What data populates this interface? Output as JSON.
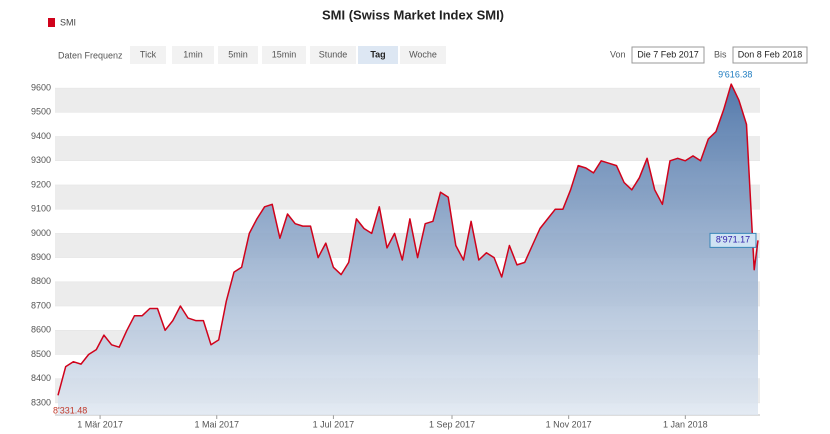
{
  "chart_data": {
    "type": "area",
    "title": "SMI (Swiss Market Index SMI)",
    "x": [
      "2017-02-07",
      "2017-02-11",
      "2017-02-15",
      "2017-02-19",
      "2017-02-23",
      "2017-02-27",
      "2017-03-03",
      "2017-03-07",
      "2017-03-11",
      "2017-03-15",
      "2017-03-19",
      "2017-03-23",
      "2017-03-27",
      "2017-03-31",
      "2017-04-04",
      "2017-04-08",
      "2017-04-12",
      "2017-04-16",
      "2017-04-20",
      "2017-04-24",
      "2017-04-28",
      "2017-05-02",
      "2017-05-06",
      "2017-05-10",
      "2017-05-14",
      "2017-05-18",
      "2017-05-22",
      "2017-05-26",
      "2017-05-30",
      "2017-06-03",
      "2017-06-07",
      "2017-06-11",
      "2017-06-15",
      "2017-06-19",
      "2017-06-23",
      "2017-06-27",
      "2017-07-01",
      "2017-07-05",
      "2017-07-09",
      "2017-07-13",
      "2017-07-17",
      "2017-07-21",
      "2017-07-25",
      "2017-07-29",
      "2017-08-02",
      "2017-08-06",
      "2017-08-10",
      "2017-08-14",
      "2017-08-18",
      "2017-08-22",
      "2017-08-26",
      "2017-08-30",
      "2017-09-03",
      "2017-09-07",
      "2017-09-11",
      "2017-09-15",
      "2017-09-19",
      "2017-09-23",
      "2017-09-27",
      "2017-10-01",
      "2017-10-05",
      "2017-10-09",
      "2017-10-13",
      "2017-10-17",
      "2017-10-21",
      "2017-10-25",
      "2017-10-29",
      "2017-11-02",
      "2017-11-06",
      "2017-11-10",
      "2017-11-14",
      "2017-11-18",
      "2017-11-22",
      "2017-11-26",
      "2017-11-30",
      "2017-12-04",
      "2017-12-08",
      "2017-12-12",
      "2017-12-16",
      "2017-12-20",
      "2017-12-24",
      "2017-12-28",
      "2018-01-01",
      "2018-01-05",
      "2018-01-09",
      "2018-01-13",
      "2018-01-17",
      "2018-01-21",
      "2018-01-25",
      "2018-01-29",
      "2018-02-02",
      "2018-02-06",
      "2018-02-08"
    ],
    "series": [
      {
        "name": "SMI",
        "color": "#d0021b",
        "values": [
          8331.48,
          8450,
          8470,
          8460,
          8500,
          8520,
          8580,
          8540,
          8530,
          8600,
          8660,
          8660,
          8690,
          8690,
          8600,
          8640,
          8700,
          8650,
          8640,
          8640,
          8540,
          8560,
          8720,
          8840,
          8860,
          9000,
          9060,
          9110,
          9120,
          8980,
          9080,
          9040,
          9030,
          9030,
          8900,
          8960,
          8860,
          8830,
          8880,
          9060,
          9020,
          9000,
          9110,
          8940,
          9000,
          8890,
          9060,
          8900,
          9040,
          9050,
          9170,
          9150,
          8950,
          8890,
          9050,
          8890,
          8920,
          8900,
          8820,
          8950,
          8870,
          8880,
          8950,
          9020,
          9060,
          9100,
          9100,
          9180,
          9280,
          9270,
          9250,
          9300,
          9290,
          9280,
          9210,
          9180,
          9230,
          9310,
          9180,
          9120,
          9300,
          9310,
          9300,
          9320,
          9300,
          9390,
          9420,
          9510,
          9616.38,
          9550,
          9450,
          8850,
          8971.17
        ],
        "value_labels": [
          "8'331.48",
          null,
          null,
          null,
          null,
          null,
          null,
          null,
          null,
          null,
          null,
          null,
          null,
          null,
          null,
          null,
          null,
          null,
          null,
          null,
          null,
          null,
          null,
          null,
          null,
          null,
          null,
          null,
          null,
          null,
          null,
          null,
          null,
          null,
          null,
          null,
          null,
          null,
          null,
          null,
          null,
          null,
          null,
          null,
          null,
          null,
          null,
          null,
          null,
          null,
          null,
          null,
          null,
          null,
          null,
          null,
          null,
          null,
          null,
          null,
          null,
          null,
          null,
          null,
          null,
          null,
          null,
          null,
          null,
          null,
          null,
          null,
          null,
          null,
          null,
          null,
          null,
          null,
          null,
          null,
          null,
          null,
          null,
          null,
          null,
          null,
          null,
          null,
          "9'616.38",
          null,
          null,
          null,
          "8'971.17"
        ]
      }
    ],
    "xlim": [
      "2017-02-07",
      "2018-02-08"
    ],
    "xticks": [
      {
        "value": "2017-03-01",
        "label": "1 Mär 2017"
      },
      {
        "value": "2017-05-01",
        "label": "1 Mai 2017"
      },
      {
        "value": "2017-07-01",
        "label": "1 Jul 2017"
      },
      {
        "value": "2017-09-01",
        "label": "1 Sep 2017"
      },
      {
        "value": "2017-11-01",
        "label": "1 Nov 2017"
      },
      {
        "value": "2018-01-01",
        "label": "1 Jan 2018"
      }
    ],
    "ylim": [
      8250,
      9650
    ],
    "yticks": [
      8300,
      8400,
      8500,
      8600,
      8700,
      8800,
      8900,
      9000,
      9100,
      9200,
      9300,
      9400,
      9500,
      9600
    ],
    "grid": true
  },
  "controls": {
    "frequency_label": "Daten Frequenz",
    "frequency_options": [
      "Tick",
      "1min",
      "5min",
      "15min",
      "Stunde",
      "Tag",
      "Woche"
    ],
    "selected": "Tag",
    "from_label": "Von",
    "from_value": "Die 7 Feb 2017",
    "to_label": "Bis",
    "to_value": "Don 8 Feb 2018"
  }
}
